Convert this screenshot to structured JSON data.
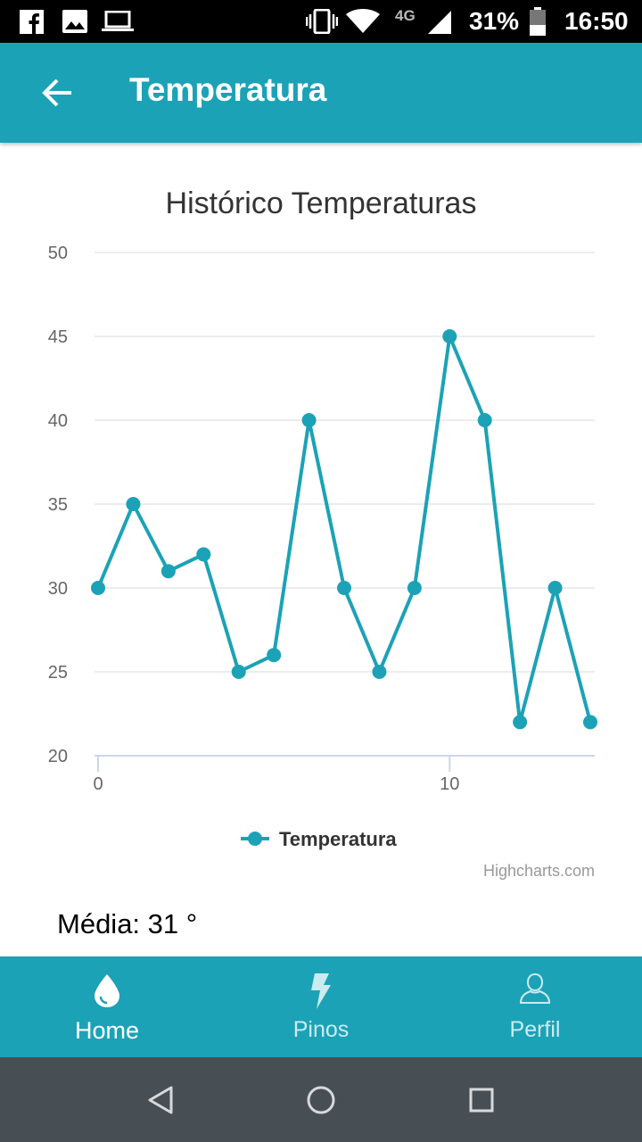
{
  "status_bar": {
    "network_label": "4G",
    "battery": "31%",
    "time": "16:50",
    "icons": [
      "facebook-icon",
      "image-icon",
      "laptop-icon",
      "vibrate-icon",
      "wifi-icon",
      "signal-icon",
      "battery-icon"
    ]
  },
  "app_bar": {
    "title": "Temperatura",
    "back_icon": "arrow-back-icon"
  },
  "chart_data": {
    "type": "line",
    "title": "Histórico Temperaturas",
    "x": [
      0,
      1,
      2,
      3,
      4,
      5,
      6,
      7,
      8,
      9,
      10,
      11,
      12,
      13,
      14
    ],
    "series": [
      {
        "name": "Temperatura",
        "values": [
          30,
          35,
          31,
          32,
          25,
          26,
          40,
          30,
          25,
          30,
          45,
          40,
          22,
          30,
          22
        ]
      }
    ],
    "xlim": [
      0,
      14
    ],
    "ylim": [
      20,
      50
    ],
    "x_ticks": [
      "0",
      "10"
    ],
    "y_ticks": [
      "20",
      "25",
      "30",
      "35",
      "40",
      "45",
      "50"
    ],
    "xlabel": "",
    "ylabel": "",
    "grid": true,
    "legend_position": "bottom-center",
    "credits": "Highcharts.com",
    "color": "#1ca2b6"
  },
  "media": {
    "text": "Média: 31 °"
  },
  "bottom_nav": {
    "items": [
      {
        "label": "Home",
        "icon": "water-drop-icon",
        "active": true
      },
      {
        "label": "Pinos",
        "icon": "lightning-bolt-icon",
        "active": false
      },
      {
        "label": "Perfil",
        "icon": "user-profile-icon",
        "active": false
      }
    ]
  },
  "system_nav": {
    "icons": [
      "back-triangle-icon",
      "home-circle-icon",
      "recents-square-icon"
    ]
  },
  "colors": {
    "accent": "#1ca2b6",
    "status_bar": "#000000",
    "system_nav": "#474e54"
  }
}
